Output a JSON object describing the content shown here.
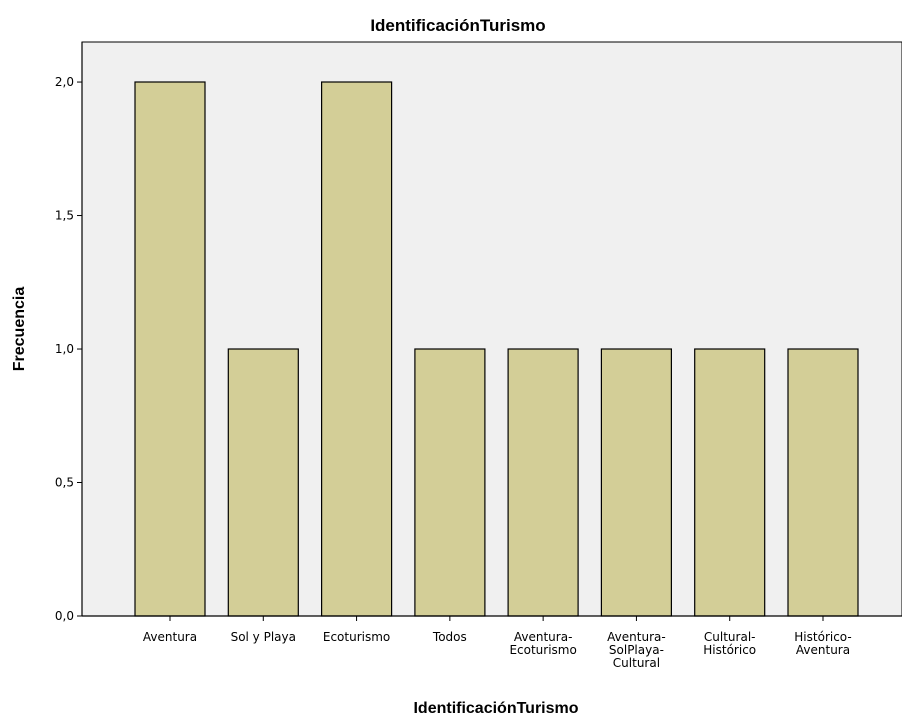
{
  "chart_data": {
    "type": "bar",
    "title": "IdentificaciónTurismo",
    "xlabel": "IdentificaciónTurismo",
    "ylabel": "Frecuencia",
    "categories": [
      [
        "Aventura"
      ],
      [
        "Sol y Playa"
      ],
      [
        "Ecoturismo"
      ],
      [
        "Todos"
      ],
      [
        "Aventura-",
        "Ecoturismo"
      ],
      [
        "Aventura-",
        "SolPlaya-",
        "Cultural"
      ],
      [
        "Cultural-",
        "Histórico"
      ],
      [
        "Histórico-",
        "Aventura"
      ]
    ],
    "values": [
      2,
      1,
      2,
      1,
      1,
      1,
      1,
      1
    ],
    "ylim": [
      0,
      2.15
    ],
    "yticks": [
      0,
      0.5,
      1,
      1.5,
      2
    ],
    "ytick_labels": [
      "0,0",
      "0,5",
      "1,0",
      "1,5",
      "2,0"
    ],
    "grid": false,
    "colors": {
      "plot_background": "#F0F0F0",
      "bar_fill": "#D3CE97",
      "bar_stroke": "#000000",
      "axis": "#000000"
    }
  }
}
